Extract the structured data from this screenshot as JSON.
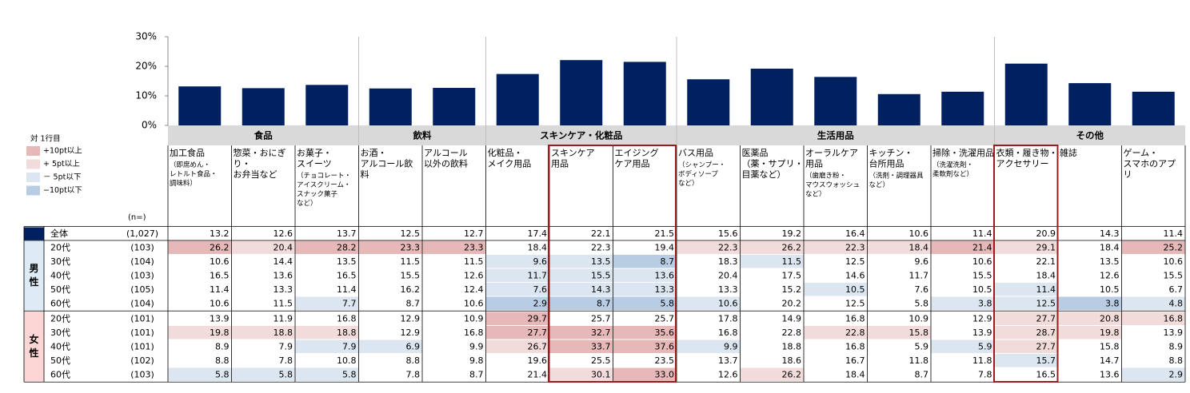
{
  "chart_data": {
    "type": "bar",
    "values": [
      13.2,
      12.6,
      13.7,
      12.5,
      12.7,
      17.4,
      22.1,
      21.5,
      15.6,
      19.2,
      16.4,
      10.6,
      11.4,
      20.9,
      14.3,
      11.4
    ],
    "color": "#002060",
    "ylim": [
      0,
      30
    ],
    "yticks": [
      {
        "value": 0,
        "label": "0%"
      },
      {
        "value": 10,
        "label": "10%"
      },
      {
        "value": 20,
        "label": "20%"
      },
      {
        "value": 30,
        "label": "30%"
      }
    ]
  },
  "legend": {
    "title": "対 1行目",
    "items": [
      {
        "label": "+10pt以上",
        "color": "#e6b8b7"
      },
      {
        "label": "+ 5pt以上",
        "color": "#f2dcdb"
      },
      {
        "label": "－ 5pt以下",
        "color": "#dce6f1"
      },
      {
        "label": "−10pt以下",
        "color": "#b8cce4"
      }
    ]
  },
  "table": {
    "n_label": "(n=)",
    "groups": [
      {
        "label": "食品",
        "columns": [
          {
            "lines": [
              "加工食品"
            ],
            "sub": [
              "（即席めん・",
              "レトルト食品・",
              "調味料）"
            ]
          },
          {
            "lines": [
              "惣菜・おにぎ",
              "り・",
              "お弁当など"
            ],
            "sub": []
          },
          {
            "lines": [
              "お菓子・",
              "スイーツ"
            ],
            "sub": [
              "（チョコレート・",
              "アイスクリーム・",
              "スナック菓子",
              "など）"
            ]
          }
        ]
      },
      {
        "label": "飲料",
        "columns": [
          {
            "lines": [
              "お酒・",
              "アルコール飲",
              "料"
            ],
            "sub": []
          },
          {
            "lines": [
              "アルコール",
              "以外の飲料"
            ],
            "sub": []
          }
        ]
      },
      {
        "label": "スキンケア・化粧品",
        "columns": [
          {
            "lines": [
              "化粧品・",
              "メイク用品"
            ],
            "sub": []
          },
          {
            "lines": [
              "スキンケア",
              "用品"
            ],
            "sub": []
          },
          {
            "lines": [
              "エイジング",
              "ケア用品"
            ],
            "sub": []
          }
        ]
      },
      {
        "label": "生活用品",
        "columns": [
          {
            "lines": [
              "バス用品"
            ],
            "sub": [
              "（シャンプー・",
              "ボディソープ",
              "など）"
            ]
          },
          {
            "lines": [
              "医薬品",
              "（薬・サプリ・",
              "目薬など）"
            ],
            "sub": []
          },
          {
            "lines": [
              "オーラルケア",
              "用品"
            ],
            "sub": [
              "（歯磨き粉・",
              "マウスウォッシュ",
              "など）"
            ]
          },
          {
            "lines": [
              "キッチン・",
              "台所用品"
            ],
            "sub": [
              "（洗剤・調理器具",
              "など）"
            ]
          },
          {
            "lines": [
              "掃除・洗濯用品"
            ],
            "sub": [
              "（洗濯洗剤・",
              "柔軟剤など）"
            ]
          }
        ]
      },
      {
        "label": "その他",
        "columns": [
          {
            "lines": [
              "衣類・履き物・",
              "アクセサリー"
            ],
            "sub": []
          },
          {
            "lines": [
              "雑誌"
            ],
            "sub": []
          },
          {
            "lines": [
              "ゲーム・",
              "スマホのアプ",
              "リ"
            ],
            "sub": []
          }
        ]
      }
    ],
    "total": {
      "label": "全体",
      "n": "(1,027)",
      "values": [
        "13.2",
        "12.6",
        "13.7",
        "12.5",
        "12.7",
        "17.4",
        "22.1",
        "21.5",
        "15.6",
        "19.2",
        "16.4",
        "10.6",
        "11.4",
        "20.9",
        "14.3",
        "11.4"
      ]
    },
    "sections": [
      {
        "label": [
          "男",
          "性"
        ],
        "color": "#ddebf7",
        "rows": [
          {
            "label": "20代",
            "n": "(103)",
            "values": [
              "26.2",
              "20.4",
              "28.2",
              "23.3",
              "23.3",
              "18.4",
              "22.3",
              "19.4",
              "22.3",
              "26.2",
              "22.3",
              "18.4",
              "21.4",
              "29.1",
              "18.4",
              "25.2"
            ],
            "colors": [
              "#e6b8b7",
              "#f2dcdb",
              "#e6b8b7",
              "#e6b8b7",
              "#e6b8b7",
              null,
              null,
              null,
              "#f2dcdb",
              "#f2dcdb",
              "#f2dcdb",
              "#f2dcdb",
              "#e6b8b7",
              "#f2dcdb",
              null,
              "#e6b8b7"
            ]
          },
          {
            "label": "30代",
            "n": "(104)",
            "values": [
              "10.6",
              "14.4",
              "13.5",
              "11.5",
              "11.5",
              "9.6",
              "13.5",
              "8.7",
              "18.3",
              "11.5",
              "12.5",
              "9.6",
              "10.6",
              "22.1",
              "13.5",
              "10.6"
            ],
            "colors": [
              null,
              null,
              null,
              null,
              null,
              "#dce6f1",
              "#dce6f1",
              "#b8cce4",
              null,
              "#dce6f1",
              null,
              null,
              null,
              null,
              null,
              null
            ]
          },
          {
            "label": "40代",
            "n": "(103)",
            "values": [
              "16.5",
              "13.6",
              "16.5",
              "15.5",
              "12.6",
              "11.7",
              "15.5",
              "13.6",
              "20.4",
              "17.5",
              "14.6",
              "11.7",
              "15.5",
              "18.4",
              "12.6",
              "15.5"
            ],
            "colors": [
              null,
              null,
              null,
              null,
              null,
              "#dce6f1",
              "#dce6f1",
              "#dce6f1",
              null,
              null,
              null,
              null,
              null,
              null,
              null,
              null
            ]
          },
          {
            "label": "50代",
            "n": "(105)",
            "values": [
              "11.4",
              "13.3",
              "11.4",
              "16.2",
              "12.4",
              "7.6",
              "14.3",
              "13.3",
              "13.3",
              "15.2",
              "10.5",
              "7.6",
              "10.5",
              "11.4",
              "10.5",
              "6.7"
            ],
            "colors": [
              null,
              null,
              null,
              null,
              null,
              "#dce6f1",
              "#dce6f1",
              "#dce6f1",
              null,
              null,
              "#dce6f1",
              null,
              null,
              "#dce6f1",
              null,
              null
            ]
          },
          {
            "label": "60代",
            "n": "(104)",
            "values": [
              "10.6",
              "11.5",
              "7.7",
              "8.7",
              "10.6",
              "2.9",
              "8.7",
              "5.8",
              "10.6",
              "20.2",
              "12.5",
              "5.8",
              "3.8",
              "12.5",
              "3.8",
              "4.8"
            ],
            "colors": [
              null,
              null,
              "#dce6f1",
              null,
              null,
              "#b8cce4",
              "#b8cce4",
              "#b8cce4",
              "#dce6f1",
              null,
              null,
              null,
              "#dce6f1",
              "#dce6f1",
              "#b8cce4",
              "#dce6f1"
            ]
          }
        ]
      },
      {
        "label": [
          "女",
          "性"
        ],
        "color": "#fcd5d5",
        "rows": [
          {
            "label": "20代",
            "n": "(101)",
            "values": [
              "13.9",
              "11.9",
              "16.8",
              "12.9",
              "10.9",
              "29.7",
              "25.7",
              "25.7",
              "17.8",
              "14.9",
              "16.8",
              "10.9",
              "12.9",
              "27.7",
              "20.8",
              "16.8"
            ],
            "colors": [
              null,
              null,
              null,
              null,
              null,
              "#e6b8b7",
              null,
              null,
              null,
              null,
              null,
              null,
              null,
              "#f2dcdb",
              "#f2dcdb",
              "#f2dcdb"
            ]
          },
          {
            "label": "30代",
            "n": "(101)",
            "values": [
              "19.8",
              "18.8",
              "18.8",
              "12.9",
              "16.8",
              "27.7",
              "32.7",
              "35.6",
              "16.8",
              "22.8",
              "22.8",
              "15.8",
              "13.9",
              "28.7",
              "19.8",
              "13.9"
            ],
            "colors": [
              "#f2dcdb",
              "#f2dcdb",
              "#f2dcdb",
              null,
              null,
              "#e6b8b7",
              "#e6b8b7",
              "#e6b8b7",
              null,
              null,
              "#f2dcdb",
              "#f2dcdb",
              null,
              "#f2dcdb",
              "#f2dcdb",
              null
            ]
          },
          {
            "label": "40代",
            "n": "(101)",
            "values": [
              "8.9",
              "7.9",
              "7.9",
              "6.9",
              "9.9",
              "26.7",
              "33.7",
              "37.6",
              "9.9",
              "18.8",
              "16.8",
              "5.9",
              "5.9",
              "27.7",
              "15.8",
              "8.9"
            ],
            "colors": [
              null,
              null,
              "#dce6f1",
              "#dce6f1",
              null,
              "#f2dcdb",
              "#e6b8b7",
              "#e6b8b7",
              "#dce6f1",
              null,
              null,
              null,
              "#dce6f1",
              "#f2dcdb",
              null,
              null
            ]
          },
          {
            "label": "50代",
            "n": "(102)",
            "values": [
              "8.8",
              "7.8",
              "10.8",
              "8.8",
              "9.8",
              "19.6",
              "25.5",
              "23.5",
              "13.7",
              "18.6",
              "16.7",
              "11.8",
              "11.8",
              "15.7",
              "14.7",
              "8.8"
            ],
            "colors": [
              null,
              null,
              null,
              null,
              null,
              null,
              null,
              null,
              null,
              null,
              null,
              null,
              null,
              "#dce6f1",
              null,
              null
            ]
          },
          {
            "label": "60代",
            "n": "(103)",
            "values": [
              "5.8",
              "5.8",
              "5.8",
              "7.8",
              "8.7",
              "21.4",
              "30.1",
              "33.0",
              "12.6",
              "26.2",
              "18.4",
              "8.7",
              "7.8",
              "16.5",
              "13.6",
              "2.9"
            ],
            "colors": [
              "#dce6f1",
              "#dce6f1",
              "#dce6f1",
              null,
              null,
              null,
              "#f2dcdb",
              "#e6b8b7",
              null,
              "#f2dcdb",
              null,
              null,
              null,
              null,
              null,
              "#dce6f1"
            ]
          }
        ]
      }
    ]
  }
}
